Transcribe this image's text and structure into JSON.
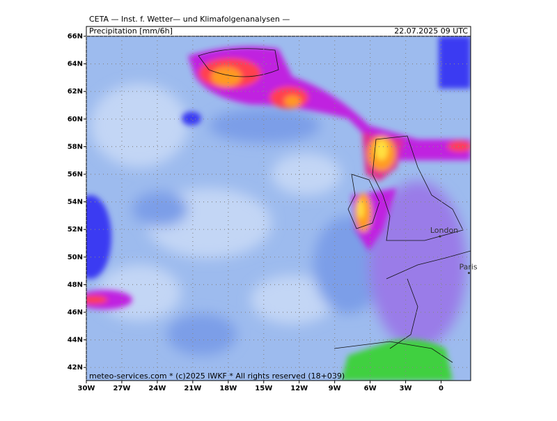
{
  "header": {
    "source": "CETA — Inst. f. Wetter— und Klimafolgenanalysen —",
    "field": "Precipitation [mm/6h]",
    "valid_time": "22.07.2025 09 UTC"
  },
  "map": {
    "lon_range": [
      -30,
      2.5
    ],
    "lat_range": [
      41.05,
      66
    ],
    "lat_ticks": [
      {
        "value": 66,
        "label": "66N"
      },
      {
        "value": 64,
        "label": "64N"
      },
      {
        "value": 62,
        "label": "62N"
      },
      {
        "value": 60,
        "label": "60N"
      },
      {
        "value": 58,
        "label": "58N"
      },
      {
        "value": 56,
        "label": "56N"
      },
      {
        "value": 54,
        "label": "54N"
      },
      {
        "value": 52,
        "label": "52N"
      },
      {
        "value": 50,
        "label": "50N"
      },
      {
        "value": 48,
        "label": "48N"
      },
      {
        "value": 46,
        "label": "46N"
      },
      {
        "value": 44,
        "label": "44N"
      },
      {
        "value": 42,
        "label": "42N"
      }
    ],
    "lon_ticks": [
      {
        "value": -30,
        "label": "30W"
      },
      {
        "value": -27,
        "label": "27W"
      },
      {
        "value": -24,
        "label": "24W"
      },
      {
        "value": -21,
        "label": "21W"
      },
      {
        "value": -18,
        "label": "18W"
      },
      {
        "value": -15,
        "label": "15W"
      },
      {
        "value": -12,
        "label": "12W"
      },
      {
        "value": -9,
        "label": "9W"
      },
      {
        "value": -6,
        "label": "6W"
      },
      {
        "value": -3,
        "label": "3W"
      },
      {
        "value": 0,
        "label": "0"
      }
    ],
    "cities": [
      {
        "name": "London",
        "lon": -0.1,
        "lat": 51.5
      },
      {
        "name": "Paris",
        "lon": 2.35,
        "lat": 48.85
      }
    ]
  },
  "footer": "meteo-services.com * (c)2025 IWKF * All rights reserved (18+039)"
}
